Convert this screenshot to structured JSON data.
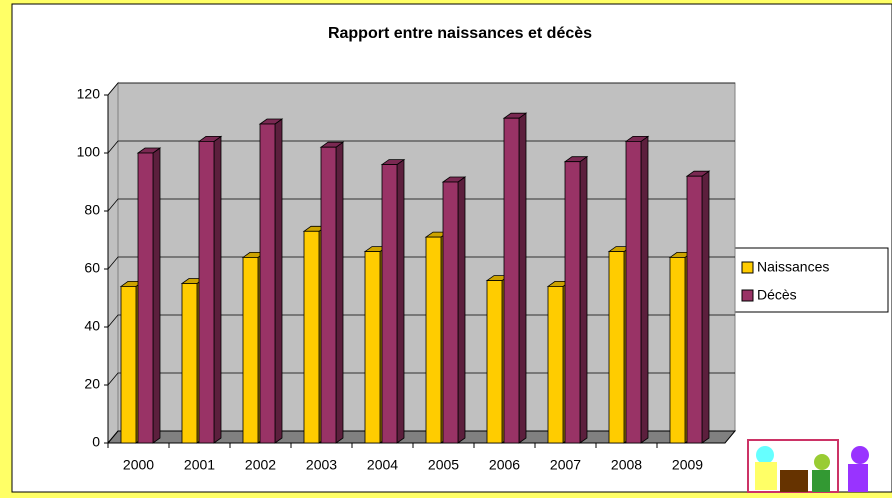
{
  "chart_data": {
    "type": "bar3d",
    "title": "Rapport entre naissances et décès",
    "categories": [
      "2000",
      "2001",
      "2002",
      "2003",
      "2004",
      "2005",
      "2006",
      "2007",
      "2008",
      "2009"
    ],
    "series": [
      {
        "name": "Naissances",
        "color": "#ffcc00",
        "values": [
          54,
          55,
          64,
          73,
          66,
          71,
          56,
          54,
          66,
          64
        ]
      },
      {
        "name": "Décès",
        "color": "#993366",
        "values": [
          100,
          104,
          110,
          102,
          96,
          90,
          112,
          97,
          104,
          92
        ]
      }
    ],
    "ylim": [
      0,
      120
    ],
    "yticks": [
      0,
      20,
      40,
      60,
      80,
      100,
      120
    ],
    "grid": true,
    "legend": "right"
  }
}
